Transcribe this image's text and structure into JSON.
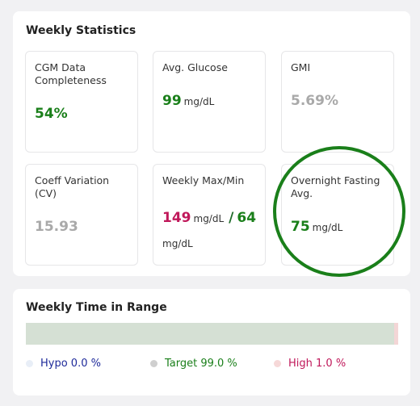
{
  "weekly_statistics": {
    "title": "Weekly Statistics",
    "tiles": {
      "cgm": {
        "label": "CGM Data Completeness",
        "value": "54%"
      },
      "avg": {
        "label": "Avg. Glucose",
        "value": "99",
        "unit": "mg/dL"
      },
      "gmi": {
        "label": "GMI",
        "value": "5.69%"
      },
      "cv": {
        "label": "Coeff Variation (CV)",
        "value": "15.93"
      },
      "maxmin": {
        "label": "Weekly Max/Min",
        "max": "149",
        "max_unit": "mg/dL",
        "separator": "/",
        "min": "64",
        "min_unit": "mg/dL"
      },
      "overnight": {
        "label": "Overnight Fasting Avg.",
        "value": "75",
        "unit": "mg/dL"
      }
    }
  },
  "time_in_range": {
    "title": "Weekly Time in Range",
    "segments": [
      {
        "name": "Hypo",
        "percent": 0.0,
        "color": "#e8eef7"
      },
      {
        "name": "Target",
        "percent": 99.0,
        "color": "#d5e0d4"
      },
      {
        "name": "High",
        "percent": 1.0,
        "color": "#f3d6d6"
      }
    ],
    "legend": {
      "hypo": {
        "text": "Hypo 0.0 %",
        "color": "#1e2a9a",
        "dot_color": "#e8eef7"
      },
      "target": {
        "text": "Target 99.0 %",
        "color": "#1a7f1a",
        "dot_color": "#cfcfcf"
      },
      "high": {
        "text": "High 1.0 %",
        "color": "#c0185a",
        "dot_color": "#f6d8d8"
      }
    }
  },
  "colors": {
    "good": "#1a7f1a",
    "neutral": "#a9a9a9",
    "alert": "#c0185a",
    "ring": "#1a7f1a"
  }
}
